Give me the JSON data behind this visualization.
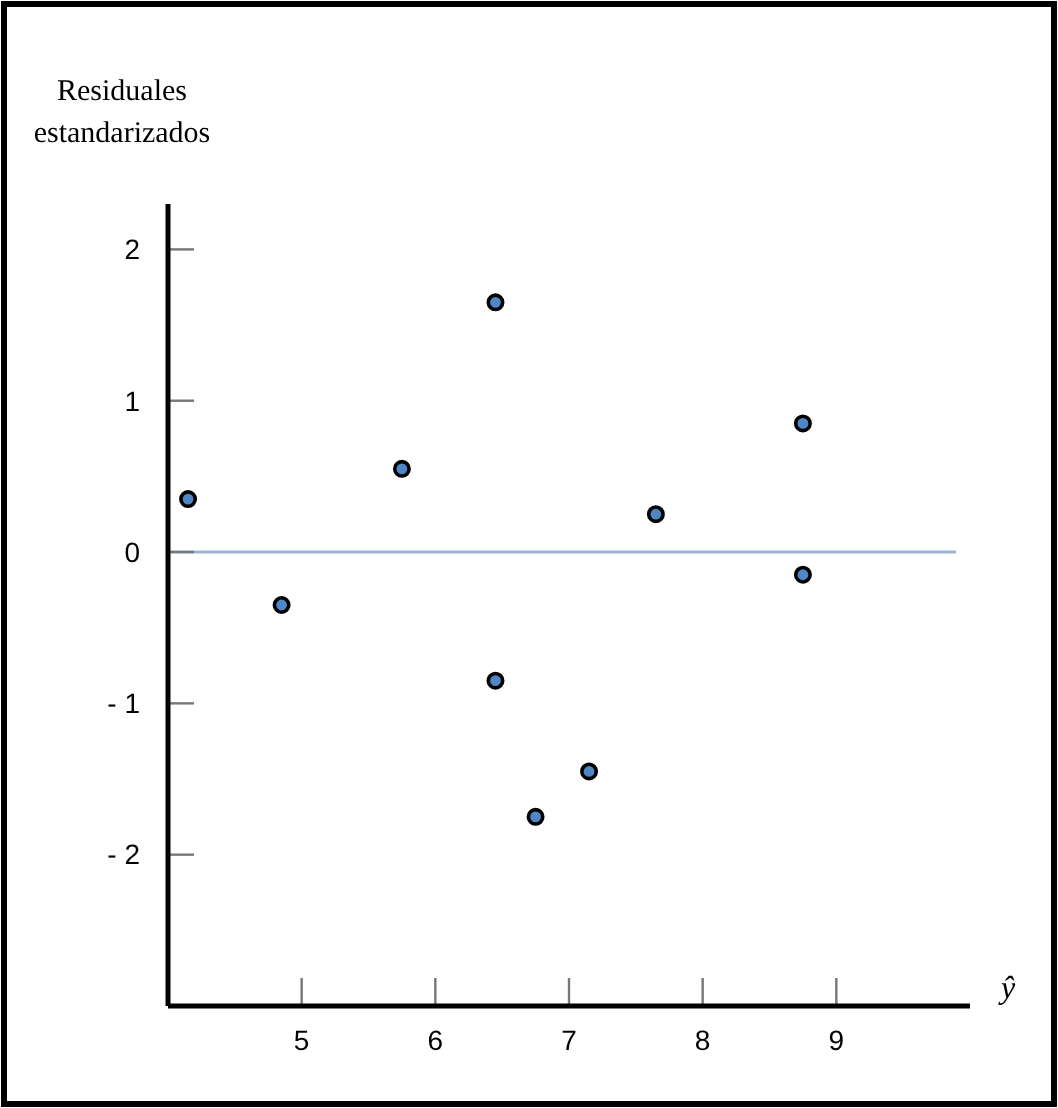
{
  "chart_data": {
    "type": "scatter",
    "ylabel": "Residuales estandarizados",
    "xlabel": "ŷ",
    "x": [
      4.15,
      4.85,
      5.75,
      6.45,
      6.45,
      6.75,
      7.15,
      7.65,
      8.75,
      8.75
    ],
    "values": [
      0.35,
      -0.35,
      0.55,
      1.65,
      -0.85,
      -1.75,
      -1.45,
      0.25,
      0.85,
      -0.15
    ],
    "color": "#4f86c6",
    "marker": "circle",
    "xlim": [
      4,
      10
    ],
    "xticks": [
      5,
      6,
      7,
      8,
      9
    ],
    "ylim": [
      -3,
      2.3
    ],
    "yticks": [
      {
        "value": -2,
        "label": "- 2"
      },
      {
        "value": -1,
        "label": "- 1"
      },
      0,
      1,
      2
    ],
    "ref_lines": [
      {
        "axis": "y",
        "value": 0,
        "color": "#9ab4d4"
      }
    ],
    "grid": false
  }
}
